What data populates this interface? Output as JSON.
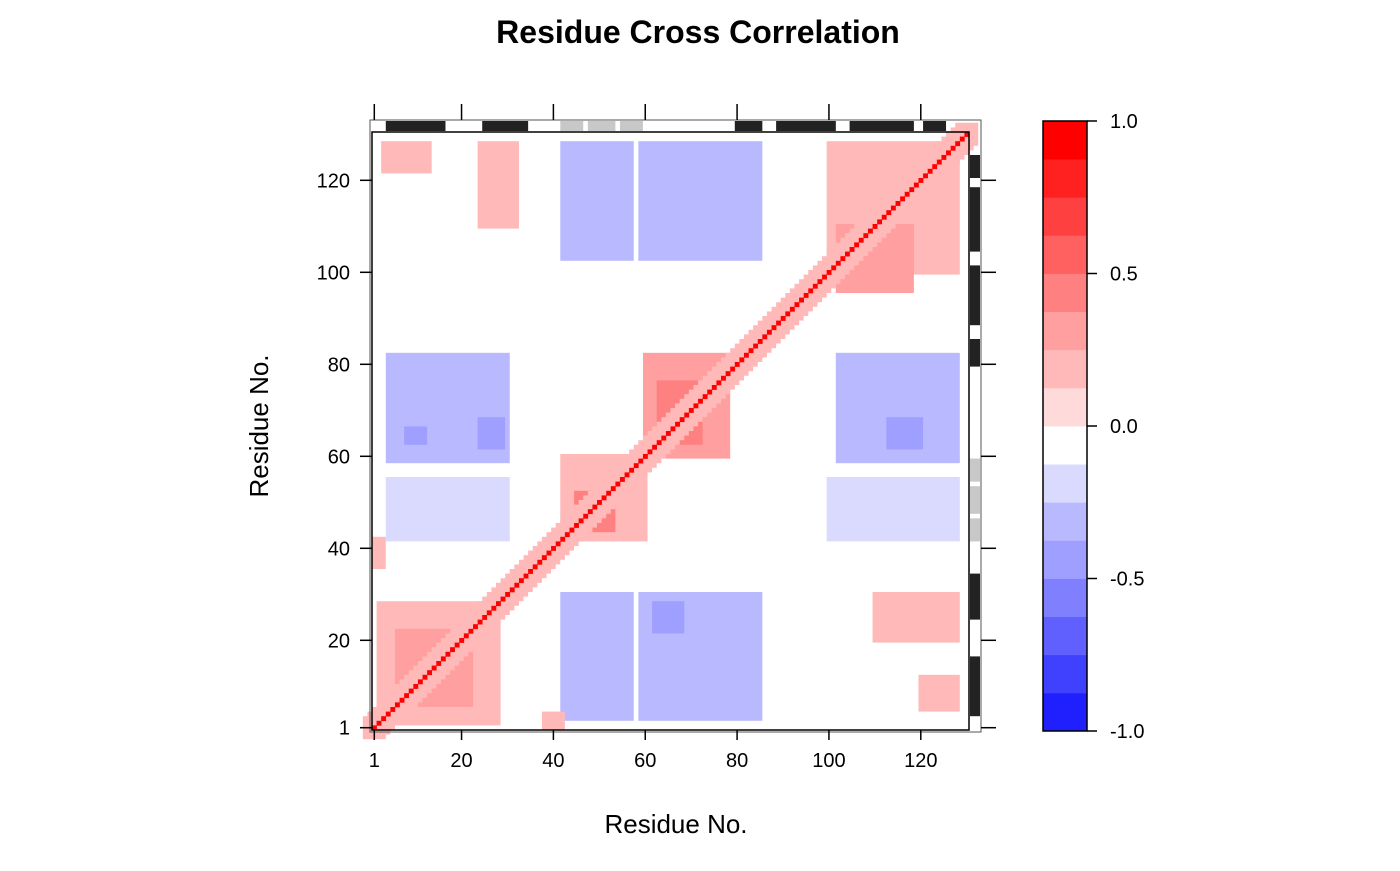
{
  "chart_data": {
    "type": "heatmap",
    "title": "Residue Cross Correlation",
    "xlabel": "Residue No.",
    "ylabel": "Residue No.",
    "xlim": [
      1,
      130
    ],
    "ylim": [
      1,
      130
    ],
    "x_ticks": [
      1,
      20,
      40,
      60,
      80,
      100,
      120
    ],
    "y_ticks": [
      1,
      20,
      40,
      60,
      80,
      100,
      120
    ],
    "grid": false,
    "colorbar": {
      "placement": "right",
      "range": [
        -1.0,
        1.0
      ],
      "tick_labels": [
        "1.0",
        "0.5",
        "0.0",
        "-0.5",
        "-1.0"
      ],
      "tick_values": [
        1.0,
        0.5,
        0.0,
        -0.5,
        -1.0
      ],
      "levels": [
        -1.0,
        -0.875,
        -0.75,
        -0.625,
        -0.5,
        -0.375,
        -0.25,
        -0.125,
        0.0,
        0.125,
        0.25,
        0.375,
        0.5,
        0.625,
        0.75,
        0.875,
        1.0
      ],
      "colors": [
        "#0000ff",
        "#2020ff",
        "#4040ff",
        "#6060ff",
        "#8080ff",
        "#9f9fff",
        "#b9b9ff",
        "#dadaff",
        "#ffffff",
        "#ffdada",
        "#ffb9b9",
        "#ff9f9f",
        "#ff8080",
        "#ff6060",
        "#ff4040",
        "#ff2020",
        "#ff0000"
      ]
    },
    "secondary_structure": {
      "helix_color": "#222222",
      "strand_color": "#c8c8c8",
      "segments": [
        {
          "type": "helix",
          "start": 4,
          "end": 16
        },
        {
          "type": "helix",
          "start": 25,
          "end": 34
        },
        {
          "type": "strand",
          "start": 42,
          "end": 46
        },
        {
          "type": "strand",
          "start": 48,
          "end": 53
        },
        {
          "type": "strand",
          "start": 55,
          "end": 59
        },
        {
          "type": "helix",
          "start": 80,
          "end": 85
        },
        {
          "type": "helix",
          "start": 89,
          "end": 101
        },
        {
          "type": "helix",
          "start": 105,
          "end": 118
        },
        {
          "type": "helix",
          "start": 121,
          "end": 125
        }
      ]
    },
    "regions": [
      {
        "x": [
          42,
          57
        ],
        "y": [
          103,
          128
        ],
        "value": -0.2
      },
      {
        "x": [
          59,
          85
        ],
        "y": [
          103,
          128
        ],
        "value": -0.22
      },
      {
        "x": [
          42,
          57
        ],
        "y": [
          3,
          30
        ],
        "value": -0.2
      },
      {
        "x": [
          59,
          85
        ],
        "y": [
          3,
          30
        ],
        "value": -0.22
      },
      {
        "x": [
          4,
          30
        ],
        "y": [
          59,
          82
        ],
        "value": -0.2
      },
      {
        "x": [
          102,
          128
        ],
        "y": [
          59,
          82
        ],
        "value": -0.2
      },
      {
        "x": [
          4,
          30
        ],
        "y": [
          42,
          55
        ],
        "value": -0.18
      },
      {
        "x": [
          100,
          128
        ],
        "y": [
          42,
          55
        ],
        "value": -0.18
      },
      {
        "x": [
          8,
          12
        ],
        "y": [
          63,
          66
        ],
        "value": -0.32
      },
      {
        "x": [
          24,
          29
        ],
        "y": [
          62,
          68
        ],
        "value": -0.32
      },
      {
        "x": [
          24,
          28
        ],
        "y": [
          74,
          78
        ],
        "value": -0.3
      },
      {
        "x": [
          113,
          120
        ],
        "y": [
          62,
          68
        ],
        "value": -0.32
      },
      {
        "x": [
          112,
          118
        ],
        "y": [
          73,
          78
        ],
        "value": -0.28
      },
      {
        "x": [
          62,
          68
        ],
        "y": [
          22,
          28
        ],
        "value": -0.32
      },
      {
        "x": [
          70,
          75
        ],
        "y": [
          22,
          27
        ],
        "value": -0.3
      },
      {
        "x": [
          62,
          68
        ],
        "y": [
          115,
          121
        ],
        "value": -0.28
      },
      {
        "x": [
          60,
          78
        ],
        "y": [
          60,
          82
        ],
        "value": 0.32
      },
      {
        "x": [
          63,
          72
        ],
        "y": [
          63,
          76
        ],
        "value": 0.42
      },
      {
        "x": [
          42,
          60
        ],
        "y": [
          42,
          60
        ],
        "value": 0.22
      },
      {
        "x": [
          45,
          53
        ],
        "y": [
          44,
          52
        ],
        "value": 0.4
      },
      {
        "x": [
          2,
          28
        ],
        "y": [
          2,
          28
        ],
        "value": 0.22
      },
      {
        "x": [
          6,
          22
        ],
        "y": [
          6,
          22
        ],
        "value": 0.3
      },
      {
        "x": [
          100,
          128
        ],
        "y": [
          100,
          128
        ],
        "value": 0.22
      },
      {
        "x": [
          102,
          118
        ],
        "y": [
          96,
          110
        ],
        "value": 0.32
      },
      {
        "x": [
          3,
          13
        ],
        "y": [
          122,
          128
        ],
        "value": 0.15
      },
      {
        "x": [
          24,
          32
        ],
        "y": [
          110,
          128
        ],
        "value": 0.15
      },
      {
        "x": [
          110,
          128
        ],
        "y": [
          20,
          30
        ],
        "value": 0.15
      },
      {
        "x": [
          120,
          128
        ],
        "y": [
          5,
          12
        ],
        "value": 0.15
      },
      {
        "x": [
          1,
          3
        ],
        "y": [
          36,
          42
        ],
        "value": 0.15
      },
      {
        "x": [
          38,
          42
        ],
        "y": [
          1,
          4
        ],
        "value": 0.15
      }
    ],
    "diagonal_value": 1.0
  }
}
